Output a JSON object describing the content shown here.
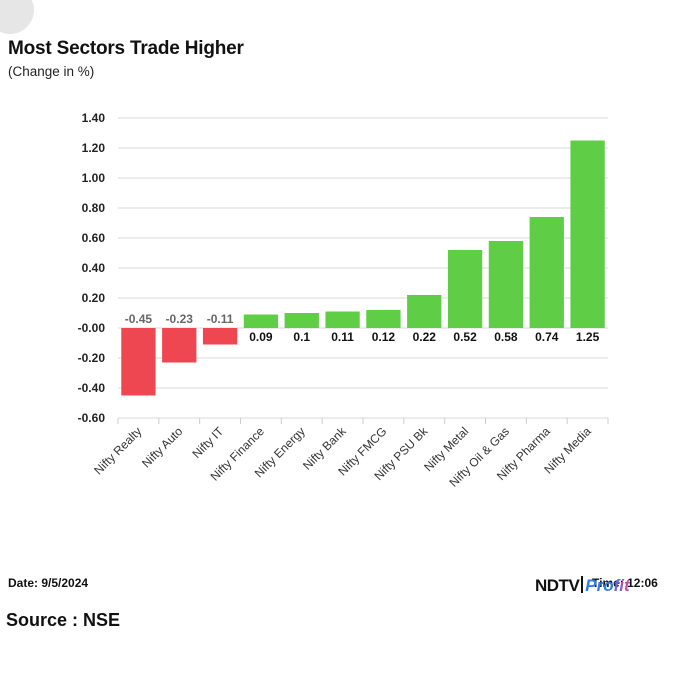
{
  "header": {
    "title": "Most Sectors Trade Higher",
    "subtitle": "(Change in %)"
  },
  "footer": {
    "date": "Date: 9/5/2024",
    "time": "Time: 12:06",
    "source": "Source : NSE",
    "logo": {
      "ndtv": "NDTV",
      "profit": "Profit"
    }
  },
  "colors": {
    "positive": "#5fcd45",
    "negative": "#ee4751",
    "grid": "#d9d9d9"
  },
  "chart_data": {
    "type": "bar",
    "categories": [
      "Nifty Realty",
      "Nifty Auto",
      "Nifty IT",
      "Nifty Finance",
      "Nifty Energy",
      "Nifty Bank",
      "Nifty FMCG",
      "Nifty PSU Bk",
      "Nifty Metal",
      "Nifty Oil & Gas",
      "Nifty Pharma",
      "Nifty Media"
    ],
    "values": [
      -0.45,
      -0.23,
      -0.11,
      0.09,
      0.1,
      0.11,
      0.12,
      0.22,
      0.52,
      0.58,
      0.74,
      1.25
    ],
    "value_labels": [
      "-0.45",
      "-0.23",
      "-0.11",
      "0.09",
      "0.1",
      "0.11",
      "0.12",
      "0.22",
      "0.52",
      "0.58",
      "0.74",
      "1.25"
    ],
    "title": "Most Sectors Trade Higher",
    "subtitle": "(Change in %)",
    "xlabel": "",
    "ylabel": "",
    "ylim": [
      -0.6,
      1.4
    ],
    "yticks": [
      1.4,
      1.2,
      1.0,
      0.8,
      0.6,
      0.4,
      0.2,
      0.0,
      -0.2,
      -0.4,
      -0.6
    ],
    "ytick_labels": [
      "1.40",
      "1.20",
      "1.00",
      "0.80",
      "0.60",
      "0.40",
      "0.20",
      "-0.00",
      "-0.20",
      "-0.40",
      "-0.60"
    ],
    "grid": true,
    "legend": "none"
  }
}
